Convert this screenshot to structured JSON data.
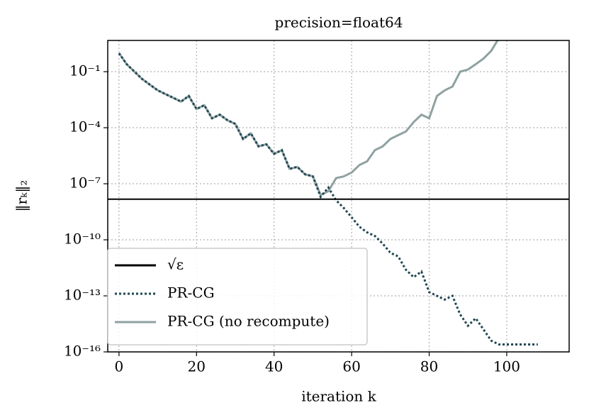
{
  "chart_data": {
    "type": "line",
    "title": "precision=float64",
    "xlabel": "iteration k",
    "ylabel": "‖rₖ‖₂",
    "yscale": "log",
    "grid": true,
    "legend": "lower left",
    "xlim": [
      -2.9,
      116.1
    ],
    "ylim": [
      1e-16,
      4.7
    ],
    "xticks": [
      0,
      20,
      40,
      60,
      80,
      100
    ],
    "yticks": [
      {
        "value": 0.1,
        "label": "10⁻¹"
      },
      {
        "value": 0.0001,
        "label": "10⁻⁴"
      },
      {
        "value": 1e-07,
        "label": "10⁻⁷"
      },
      {
        "value": 1e-10,
        "label": "10⁻¹⁰"
      },
      {
        "value": 1e-13,
        "label": "10⁻¹³"
      },
      {
        "value": 1e-16,
        "label": "10⁻¹⁶"
      }
    ],
    "hline": {
      "name": "√ε",
      "value": 1.49e-08,
      "color": "#000000"
    },
    "x": [
      0,
      2,
      4,
      6,
      8,
      10,
      12,
      14,
      16,
      18,
      20,
      22,
      24,
      26,
      28,
      30,
      32,
      34,
      36,
      38,
      40,
      42,
      44,
      46,
      48,
      50,
      52,
      54,
      56,
      58,
      60,
      62,
      64,
      66,
      68,
      70,
      72,
      74,
      76,
      78,
      80,
      82,
      84,
      86,
      88,
      90,
      92,
      94,
      96,
      98,
      100,
      102,
      104,
      106,
      108
    ],
    "series": [
      {
        "name": "PR-CG",
        "color": "#1f4652",
        "style": "dotted",
        "values": [
          0.98,
          0.25,
          0.1,
          0.04,
          0.02,
          0.01,
          0.0063,
          0.004,
          0.0025,
          0.005,
          0.001,
          0.0016,
          0.00032,
          0.0005,
          0.00025,
          0.00016,
          2.5e-05,
          5e-05,
          1e-05,
          1.3e-05,
          4e-06,
          6.3e-06,
          6.3e-07,
          8e-07,
          3.2e-07,
          2.5e-07,
          2e-08,
          6.3e-08,
          1.3e-08,
          5e-09,
          1.6e-09,
          5e-10,
          2.5e-10,
          1.6e-10,
          6.3e-11,
          2e-11,
          1.3e-11,
          2.5e-12,
          1e-12,
          2e-12,
          1.6e-13,
          1e-13,
          6.3e-14,
          1e-13,
          1e-14,
          2.5e-15,
          6.3e-15,
          1.6e-15,
          4e-16,
          2.5e-16,
          2.5e-16,
          2.5e-16,
          2.5e-16,
          2.5e-16,
          2.5e-16
        ]
      },
      {
        "name": "PR-CG (no recompute)",
        "color": "#8fa1a1",
        "style": "solid",
        "values": [
          0.98,
          0.25,
          0.1,
          0.04,
          0.02,
          0.01,
          0.0063,
          0.004,
          0.0025,
          0.005,
          0.001,
          0.0016,
          0.00032,
          0.0005,
          0.00025,
          0.00016,
          2.5e-05,
          5e-05,
          1e-05,
          1.3e-05,
          4e-06,
          6.3e-06,
          6.3e-07,
          8e-07,
          3.2e-07,
          2.5e-07,
          2.5e-08,
          4e-08,
          2e-07,
          2.5e-07,
          4e-07,
          1e-06,
          1.6e-06,
          6.3e-06,
          1e-05,
          2.5e-05,
          4e-05,
          6.3e-05,
          0.0002,
          0.0005,
          0.00032,
          0.005,
          0.01,
          0.016,
          0.1,
          0.13,
          0.25,
          0.5,
          1.3,
          6.3,
          null,
          null,
          null,
          null,
          null
        ]
      }
    ]
  }
}
